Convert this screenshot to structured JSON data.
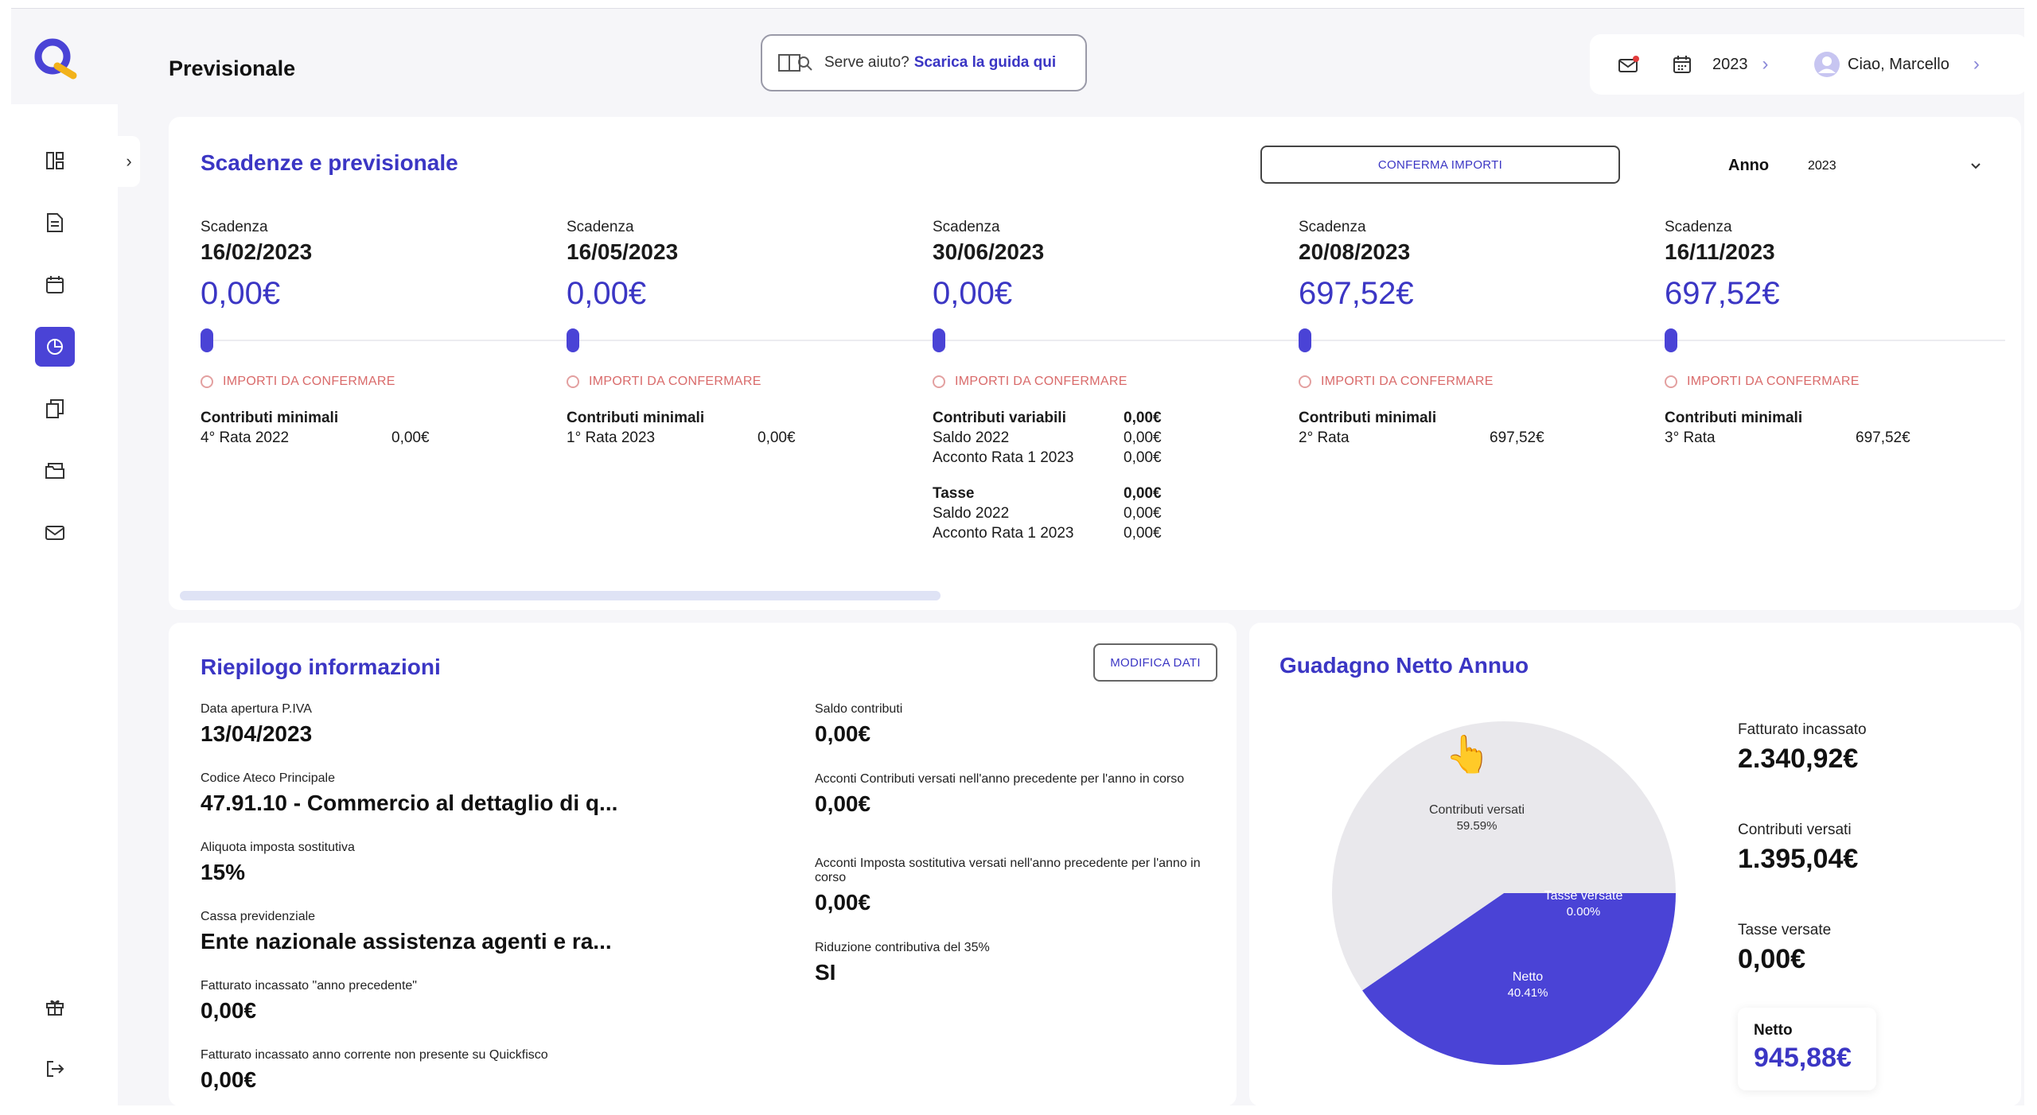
{
  "header": {
    "page_title": "Previsionale",
    "help_text": "Serve aiuto?",
    "help_link": "Scarica la guida qui",
    "year": "2023",
    "greeting": "Ciao, Marcello"
  },
  "scadenze": {
    "title": "Scadenze e previsionale",
    "confirm_button": "CONFERMA IMPORTI",
    "anno_label": "Anno",
    "anno_value": "2023",
    "columns": [
      {
        "label": "Scadenza",
        "date": "16/02/2023",
        "amount": "0,00€",
        "warning": "IMPORTI DA CONFERMARE",
        "groups": [
          {
            "title": "Contributi minimali",
            "total": "",
            "rows": [
              {
                "k": "4° Rata 2022",
                "v": "0,00€"
              }
            ]
          }
        ]
      },
      {
        "label": "Scadenza",
        "date": "16/05/2023",
        "amount": "0,00€",
        "warning": "IMPORTI DA CONFERMARE",
        "groups": [
          {
            "title": "Contributi minimali",
            "total": "",
            "rows": [
              {
                "k": "1° Rata 2023",
                "v": "0,00€"
              }
            ]
          }
        ]
      },
      {
        "label": "Scadenza",
        "date": "30/06/2023",
        "amount": "0,00€",
        "warning": "IMPORTI DA CONFERMARE",
        "groups": [
          {
            "title": "Contributi variabili",
            "total": "0,00€",
            "rows": [
              {
                "k": "Saldo 2022",
                "v": "0,00€"
              },
              {
                "k": "Acconto Rata 1 2023",
                "v": "0,00€"
              }
            ]
          },
          {
            "title": "Tasse",
            "total": "0,00€",
            "rows": [
              {
                "k": "Saldo 2022",
                "v": "0,00€"
              },
              {
                "k": "Acconto Rata 1 2023",
                "v": "0,00€"
              }
            ]
          }
        ]
      },
      {
        "label": "Scadenza",
        "date": "20/08/2023",
        "amount": "697,52€",
        "warning": "IMPORTI DA CONFERMARE",
        "groups": [
          {
            "title": "Contributi minimali",
            "total": "",
            "rows": [
              {
                "k": "2° Rata",
                "v": "697,52€"
              }
            ]
          }
        ]
      },
      {
        "label": "Scadenza",
        "date": "16/11/2023",
        "amount": "697,52€",
        "warning": "IMPORTI DA CONFERMARE",
        "groups": [
          {
            "title": "Contributi minimali",
            "total": "",
            "rows": [
              {
                "k": "3° Rata",
                "v": "697,52€"
              }
            ]
          }
        ]
      }
    ]
  },
  "riepilogo": {
    "title": "Riepilogo informazioni",
    "edit_button": "MODIFICA DATI",
    "left": [
      {
        "label": "Data apertura P.IVA",
        "value": "13/04/2023"
      },
      {
        "label": "Codice Ateco Principale",
        "value": "47.91.10 - Commercio al dettaglio di q..."
      },
      {
        "label": "Aliquota imposta sostitutiva",
        "value": "15%"
      },
      {
        "label": "Cassa previdenziale",
        "value": "Ente nazionale assistenza agenti e ra..."
      },
      {
        "label": "Fatturato incassato \"anno precedente\"",
        "value": "0,00€"
      },
      {
        "label": "Fatturato incassato anno corrente non presente su Quickfisco",
        "value": "0,00€"
      }
    ],
    "right": [
      {
        "label": "Saldo contributi",
        "value": "0,00€"
      },
      {
        "label": "Acconti Contributi versati nell'anno precedente per l'anno in corso",
        "value": "0,00€"
      },
      {
        "label": "Acconti Imposta sostitutiva versati nell'anno precedente per l'anno in corso",
        "value": "0,00€"
      },
      {
        "label": "Riduzione contributiva del 35%",
        "value": "SI"
      }
    ]
  },
  "guadagno": {
    "title": "Guadagno Netto Annuo",
    "legend": [
      {
        "label": "Fatturato incassato",
        "value": "2.340,92€"
      },
      {
        "label": "Contributi versati",
        "value": "1.395,04€"
      },
      {
        "label": "Tasse versate",
        "value": "0,00€"
      }
    ],
    "netto_label": "Netto",
    "netto_value": "945,88€"
  },
  "chart_data": {
    "type": "pie",
    "slices": [
      {
        "name": "Contributi versati",
        "value": 59.59,
        "label": "59.59%",
        "color": "#e9e8ec"
      },
      {
        "name": "Tasse versate",
        "value": 0.0,
        "label": "0.00%",
        "color": "#e9e8ec"
      },
      {
        "name": "Netto",
        "value": 40.41,
        "label": "40.41%",
        "color": "#4a43d6"
      }
    ]
  },
  "colors": {
    "accent": "#3b36c4",
    "accent_fill": "#4a43d6",
    "warning": "#d96a6a",
    "background": "#f6f6f9"
  }
}
